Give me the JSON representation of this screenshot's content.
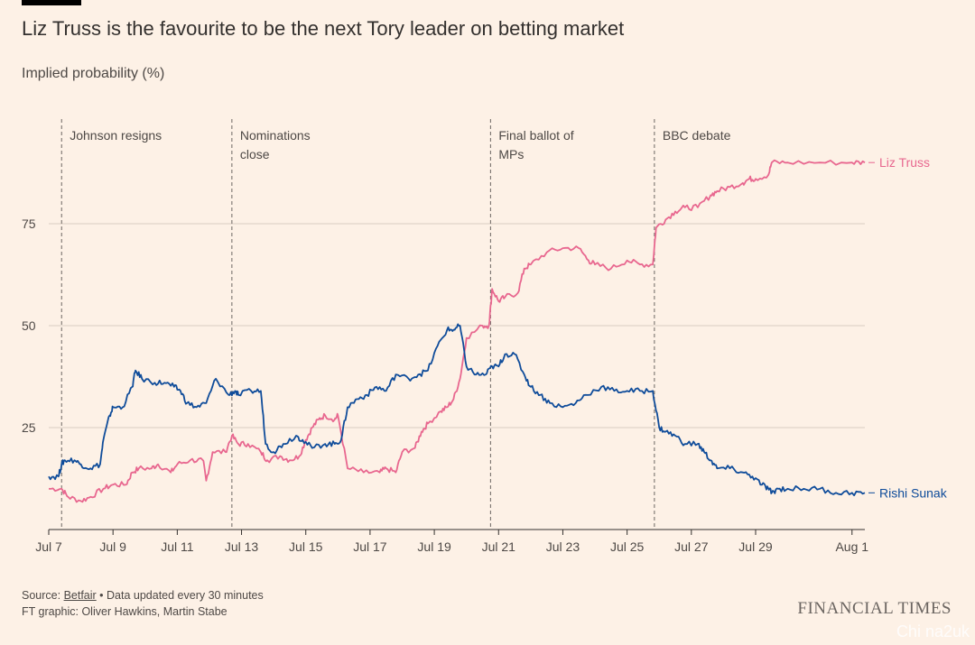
{
  "header": {
    "title": "Liz Truss is the favourite to be the next Tory leader on betting market",
    "subtitle": "Implied probability (%)"
  },
  "footer": {
    "source_prefix": "Source: ",
    "source_link": "Betfair",
    "source_suffix": " • Data updated every 30 minutes",
    "credit": "FT graphic: Oliver Hawkins, Martin Stabe",
    "brand": "FINANCIAL TIMES",
    "watermark": "Chi na2uk"
  },
  "colors": {
    "truss": "#e8678f",
    "sunak": "#0f4c9a",
    "grid": "#d9cdc2",
    "text": "#4d4845"
  },
  "chart_data": {
    "type": "line",
    "xlabel": "",
    "ylabel": "Implied probability (%)",
    "xlim": [
      7,
      32.4
    ],
    "ylim": [
      0,
      100
    ],
    "yticks": [
      25,
      50,
      75
    ],
    "xticks": [
      {
        "value": 7,
        "label": "Jul 7"
      },
      {
        "value": 9,
        "label": "Jul 9"
      },
      {
        "value": 11,
        "label": "Jul 11"
      },
      {
        "value": 13,
        "label": "Jul 13"
      },
      {
        "value": 15,
        "label": "Jul 15"
      },
      {
        "value": 17,
        "label": "Jul 17"
      },
      {
        "value": 19,
        "label": "Jul 19"
      },
      {
        "value": 21,
        "label": "Jul 21"
      },
      {
        "value": 23,
        "label": "Jul 23"
      },
      {
        "value": 25,
        "label": "Jul 25"
      },
      {
        "value": 27,
        "label": "Jul 27"
      },
      {
        "value": 29,
        "label": "Jul 29"
      },
      {
        "value": 32,
        "label": "Aug 1"
      }
    ],
    "annotations": [
      {
        "x": 7.4,
        "lines": [
          "Johnson resigns"
        ]
      },
      {
        "x": 12.7,
        "lines": [
          "Nominations",
          "close"
        ]
      },
      {
        "x": 20.75,
        "lines": [
          "Final ballot of",
          "MPs"
        ]
      },
      {
        "x": 25.85,
        "lines": [
          "BBC debate"
        ]
      }
    ],
    "grid": true,
    "series": [
      {
        "name": "Liz Truss",
        "color": "#e8678f",
        "x": [
          7.0,
          7.4,
          7.6,
          8.0,
          8.3,
          8.7,
          9.0,
          9.4,
          9.6,
          9.8,
          10.2,
          10.4,
          10.8,
          11.0,
          11.4,
          11.8,
          11.9,
          12.1,
          12.5,
          12.7,
          12.9,
          13.2,
          13.6,
          13.8,
          14.2,
          14.5,
          14.8,
          15.0,
          15.2,
          15.4,
          15.6,
          15.9,
          16.0,
          16.3,
          16.8,
          17.3,
          17.5,
          17.8,
          18.0,
          18.4,
          18.6,
          18.8,
          19.2,
          19.4,
          19.6,
          19.8,
          20.0,
          20.5,
          20.7,
          20.8,
          21.0,
          21.2,
          21.6,
          21.8,
          22.0,
          22.5,
          23.0,
          23.5,
          23.8,
          24.0,
          24.5,
          25.0,
          25.4,
          25.8,
          25.9,
          26.2,
          26.5,
          26.8,
          27.2,
          27.6,
          27.8,
          28.2,
          28.6,
          28.8,
          29.0,
          29.4,
          29.5,
          30.0,
          31.0,
          32.0,
          32.4
        ],
        "values": [
          10,
          10,
          8,
          7,
          8,
          10,
          11,
          11,
          14,
          15,
          15,
          16,
          14,
          16,
          17,
          17,
          12,
          19,
          19,
          23,
          21,
          21,
          19,
          17,
          18,
          17,
          18,
          22,
          25,
          27,
          28,
          27,
          28,
          15,
          14,
          14,
          15,
          14,
          19,
          20,
          24,
          26,
          29,
          30,
          32,
          37,
          47,
          50,
          50,
          59,
          56,
          57,
          58,
          64,
          65,
          68,
          69,
          69,
          66,
          65,
          64,
          66,
          65,
          65,
          74,
          76,
          78,
          79,
          79,
          82,
          83,
          84,
          85,
          86,
          86,
          87,
          90,
          90,
          90,
          90,
          90
        ]
      },
      {
        "name": "Rishi Sunak",
        "color": "#0f4c9a",
        "x": [
          7.0,
          7.3,
          7.4,
          7.5,
          7.8,
          8.0,
          8.3,
          8.6,
          8.7,
          8.9,
          9.0,
          9.3,
          9.6,
          9.7,
          9.9,
          10.3,
          10.6,
          10.9,
          11.1,
          11.3,
          11.6,
          11.9,
          12.2,
          12.6,
          12.8,
          12.9,
          13.3,
          13.6,
          13.75,
          14.0,
          14.3,
          14.7,
          14.9,
          15.2,
          15.6,
          15.9,
          16.1,
          16.3,
          16.6,
          16.9,
          17.2,
          17.5,
          17.8,
          18.2,
          18.5,
          18.8,
          19.1,
          19.4,
          19.6,
          19.8,
          20.0,
          20.3,
          20.6,
          20.8,
          21.0,
          21.2,
          21.5,
          21.8,
          22.0,
          22.3,
          22.6,
          23.0,
          23.4,
          23.7,
          24.2,
          24.6,
          25.0,
          25.4,
          25.8,
          26.0,
          26.2,
          26.5,
          26.8,
          27.2,
          27.4,
          27.6,
          27.8,
          28.2,
          28.6,
          28.9,
          29.2,
          29.4,
          29.5,
          29.7,
          30.0,
          30.5,
          31.0,
          31.5,
          32.0,
          32.4
        ],
        "values": [
          13,
          13,
          16,
          17,
          17,
          16,
          15,
          16,
          22,
          28,
          30,
          30,
          35,
          39,
          37,
          36,
          36,
          35,
          34,
          31,
          30,
          31,
          37,
          33,
          34,
          33,
          34,
          34,
          21,
          19,
          21,
          23,
          22,
          20,
          21,
          21,
          22,
          30,
          32,
          33,
          35,
          34,
          38,
          37,
          38,
          39,
          45,
          49,
          49,
          50,
          40,
          38,
          38,
          40,
          40,
          43,
          43,
          38,
          35,
          33,
          31,
          30,
          31,
          33,
          35,
          34,
          34,
          34,
          34,
          25,
          24,
          23,
          21,
          21,
          19,
          17,
          15,
          15,
          14,
          13,
          11,
          10,
          9,
          10,
          10,
          10,
          10,
          9,
          9,
          9
        ]
      }
    ]
  }
}
